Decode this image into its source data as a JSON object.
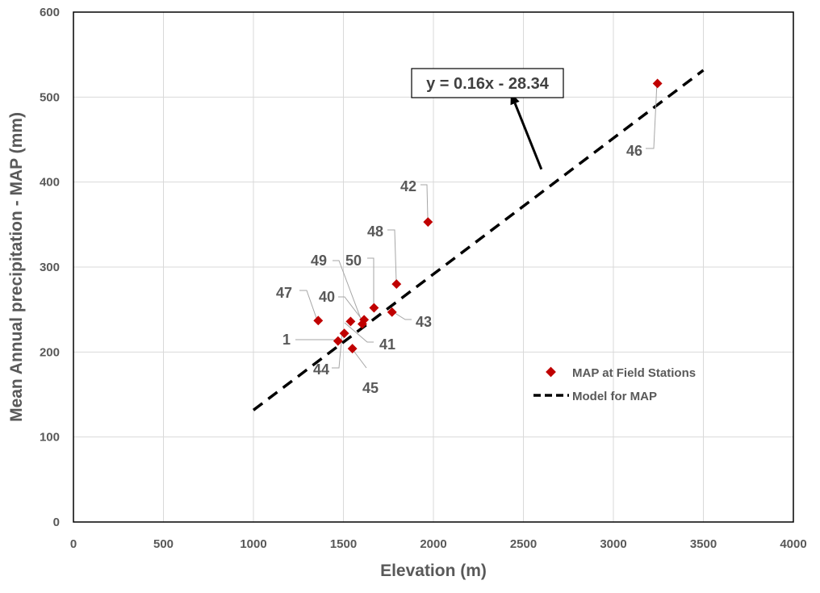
{
  "chart_data": {
    "type": "scatter",
    "xlabel": "Elevation (m)",
    "ylabel": "Mean Annual precipitation - MAP (mm)",
    "xlim": [
      0,
      4000
    ],
    "ylim": [
      0,
      600
    ],
    "xticks": [
      0,
      500,
      1000,
      1500,
      2000,
      2500,
      3000,
      3500,
      4000
    ],
    "yticks": [
      0,
      100,
      200,
      300,
      400,
      500,
      600
    ],
    "grid": true,
    "legend_position": "right",
    "series": [
      {
        "name": "MAP at Field Stations",
        "marker": "diamond",
        "color": "#c00000",
        "points": [
          {
            "label": "47",
            "x": 1360,
            "y": 237
          },
          {
            "label": "1",
            "x": 1470,
            "y": 213
          },
          {
            "label": "44",
            "x": 1505,
            "y": 222
          },
          {
            "label": "40",
            "x": 1540,
            "y": 236
          },
          {
            "label": "45",
            "x": 1550,
            "y": 204
          },
          {
            "label": "49",
            "x": 1605,
            "y": 233
          },
          {
            "label": "41",
            "x": 1615,
            "y": 238
          },
          {
            "label": "50",
            "x": 1670,
            "y": 252
          },
          {
            "label": "43",
            "x": 1770,
            "y": 247
          },
          {
            "label": "48",
            "x": 1795,
            "y": 280
          },
          {
            "label": "42",
            "x": 1970,
            "y": 353
          },
          {
            "label": "46",
            "x": 3245,
            "y": 516
          }
        ]
      },
      {
        "name": "Model for MAP",
        "style": "dashed",
        "color": "#000000",
        "slope": 0.16,
        "intercept": -28.34,
        "x_range": [
          1000,
          3500
        ]
      }
    ],
    "annotations": [
      {
        "text": "y = 0.16x - 28.34",
        "arrow_from": [
          2600,
          415
        ],
        "arrow_to": [
          2430,
          505
        ]
      }
    ]
  }
}
